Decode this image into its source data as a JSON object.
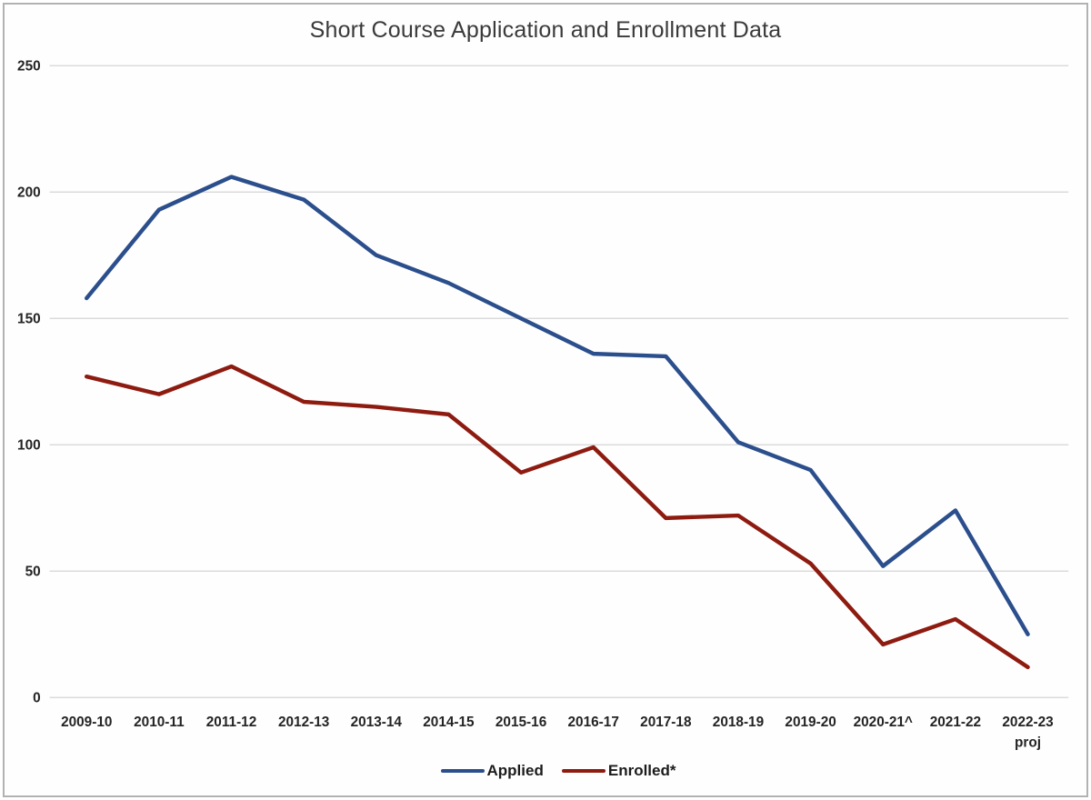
{
  "chart_data": {
    "type": "line",
    "title": "Short Course Application and Enrollment Data",
    "categories": [
      "2009-10",
      "2010-11",
      "2011-12",
      "2012-13",
      "2013-14",
      "2014-15",
      "2015-16",
      "2016-17",
      "2017-18",
      "2018-19",
      "2019-20",
      "2020-21^",
      "2021-22",
      [
        "2022-23",
        "proj"
      ]
    ],
    "series": [
      {
        "name": "Applied",
        "color": "#2b4e8c",
        "values": [
          158,
          193,
          206,
          197,
          175,
          164,
          150,
          136,
          135,
          101,
          90,
          52,
          74,
          25
        ]
      },
      {
        "name": "Enrolled*",
        "color": "#8e1b10",
        "values": [
          127,
          120,
          131,
          117,
          115,
          112,
          89,
          99,
          71,
          72,
          53,
          21,
          31,
          12
        ]
      }
    ],
    "ylim": [
      0,
      250
    ],
    "yticks": [
      0,
      50,
      100,
      150,
      200,
      250
    ],
    "xlabel": "",
    "ylabel": "",
    "grid": true,
    "legend_position": "bottom",
    "gridline_color": "#d5d5d5",
    "text_color": "#242424"
  }
}
